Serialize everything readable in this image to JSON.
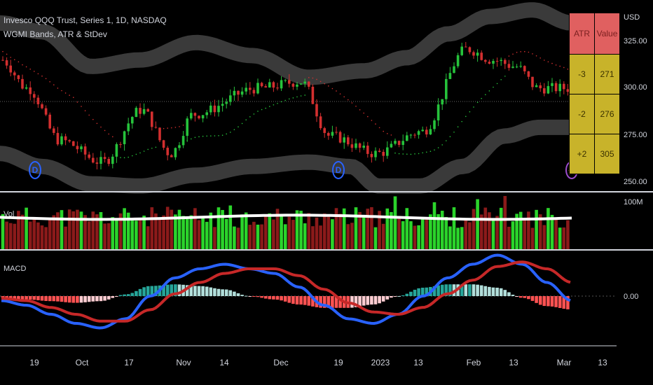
{
  "header": {
    "symbol_line": "Invesco QQQ Trust, Series 1, 1D, NASDAQ",
    "indicator_line": "WGMI Bands, ATR & StDev"
  },
  "price_axis": {
    "unit": "USD",
    "ticks": [
      "325.00",
      "300.00",
      "275.00",
      "250.00"
    ]
  },
  "volume_panel": {
    "title": "Vol",
    "axis_label": "100M"
  },
  "macd_panel": {
    "title": "MACD",
    "axis_label": "0.00"
  },
  "date_axis": [
    "19",
    "Oct",
    "17",
    "Nov",
    "14",
    "Dec",
    "19",
    "2023",
    "13",
    "Feb",
    "13",
    "Mar",
    "13"
  ],
  "atr_table": {
    "headers": [
      "ATR",
      "Value"
    ],
    "rows": [
      [
        "-3",
        "271"
      ],
      [
        "-2",
        "276"
      ],
      [
        "+2",
        "305"
      ]
    ]
  },
  "events": [
    {
      "type": "dividend",
      "glyph": "D"
    },
    {
      "type": "dividend",
      "glyph": "D"
    },
    {
      "type": "earnings",
      "glyph": "⚡"
    }
  ],
  "colors": {
    "background": "#000000",
    "up": "#26c23b",
    "down": "#d32f2f",
    "band": "#3a3a3a",
    "volume_up": "#2bd42b",
    "volume_down": "#8b1a1a",
    "volume_ma": "#ffffff",
    "macd_line": "#2962ff",
    "signal_line": "#c62828",
    "table_header": "#e06060",
    "table_body": "#c8b32a"
  },
  "chart_data": [
    {
      "type": "candlestick",
      "title": "Invesco QQQ Trust, Series 1, 1D, NASDAQ",
      "ylabel": "USD",
      "ylim": [
        245,
        330
      ],
      "x_range": [
        "2022-09-12",
        "2023-03-20"
      ],
      "close_anchors": [
        {
          "date": "2022-09-12",
          "close": 305
        },
        {
          "date": "2022-09-20",
          "close": 292
        },
        {
          "date": "2022-09-30",
          "close": 268
        },
        {
          "date": "2022-10-13",
          "close": 258
        },
        {
          "date": "2022-10-25",
          "close": 282
        },
        {
          "date": "2022-11-03",
          "close": 262
        },
        {
          "date": "2022-11-10",
          "close": 280
        },
        {
          "date": "2022-11-30",
          "close": 292
        },
        {
          "date": "2022-12-13",
          "close": 295
        },
        {
          "date": "2022-12-22",
          "close": 270
        },
        {
          "date": "2023-01-05",
          "close": 262
        },
        {
          "date": "2023-01-19",
          "close": 272
        },
        {
          "date": "2023-02-02",
          "close": 310
        },
        {
          "date": "2023-02-10",
          "close": 305
        },
        {
          "date": "2023-02-17",
          "close": 302
        },
        {
          "date": "2023-02-24",
          "close": 292
        },
        {
          "date": "2023-03-02",
          "close": 292
        }
      ],
      "bands": {
        "upper_outer": [
          [
            0,
            322
          ],
          [
            60,
            318
          ],
          [
            130,
            302
          ],
          [
            200,
            305
          ],
          [
            280,
            313
          ],
          [
            360,
            307
          ],
          [
            440,
            297
          ],
          [
            520,
            300
          ],
          [
            580,
            306
          ],
          [
            640,
            317
          ],
          [
            700,
            325
          ],
          [
            760,
            328
          ],
          [
            816,
            322
          ]
        ],
        "lower_outer": [
          [
            0,
            262
          ],
          [
            60,
            256
          ],
          [
            130,
            248
          ],
          [
            200,
            247
          ],
          [
            280,
            252
          ],
          [
            360,
            256
          ],
          [
            440,
            258
          ],
          [
            500,
            256
          ],
          [
            540,
            247
          ],
          [
            600,
            247
          ],
          [
            660,
            256
          ],
          [
            720,
            270
          ],
          [
            770,
            274
          ],
          [
            816,
            274
          ]
        ]
      },
      "last_close": 292
    },
    {
      "type": "bar",
      "title": "Vol",
      "ylim": [
        0,
        100000000
      ],
      "ma_level": 60000000
    },
    {
      "type": "bar",
      "title": "MACD",
      "zero_label": "0.00",
      "series": [
        {
          "name": "MACD",
          "values": [
            -1,
            -2,
            -4,
            -6,
            -7,
            -5,
            0,
            4,
            6,
            7,
            6,
            5,
            2,
            -2,
            -5,
            -6,
            -4,
            0,
            4,
            7,
            9,
            7,
            3,
            -1
          ]
        },
        {
          "name": "Signal",
          "values": [
            -0.5,
            -1,
            -2.5,
            -4,
            -5.5,
            -5.5,
            -3,
            0.5,
            3,
            5,
            6,
            6,
            4.5,
            1.5,
            -1.5,
            -3.5,
            -4,
            -2.5,
            0.5,
            3.5,
            6.5,
            7.5,
            6,
            3
          ]
        }
      ]
    }
  ]
}
